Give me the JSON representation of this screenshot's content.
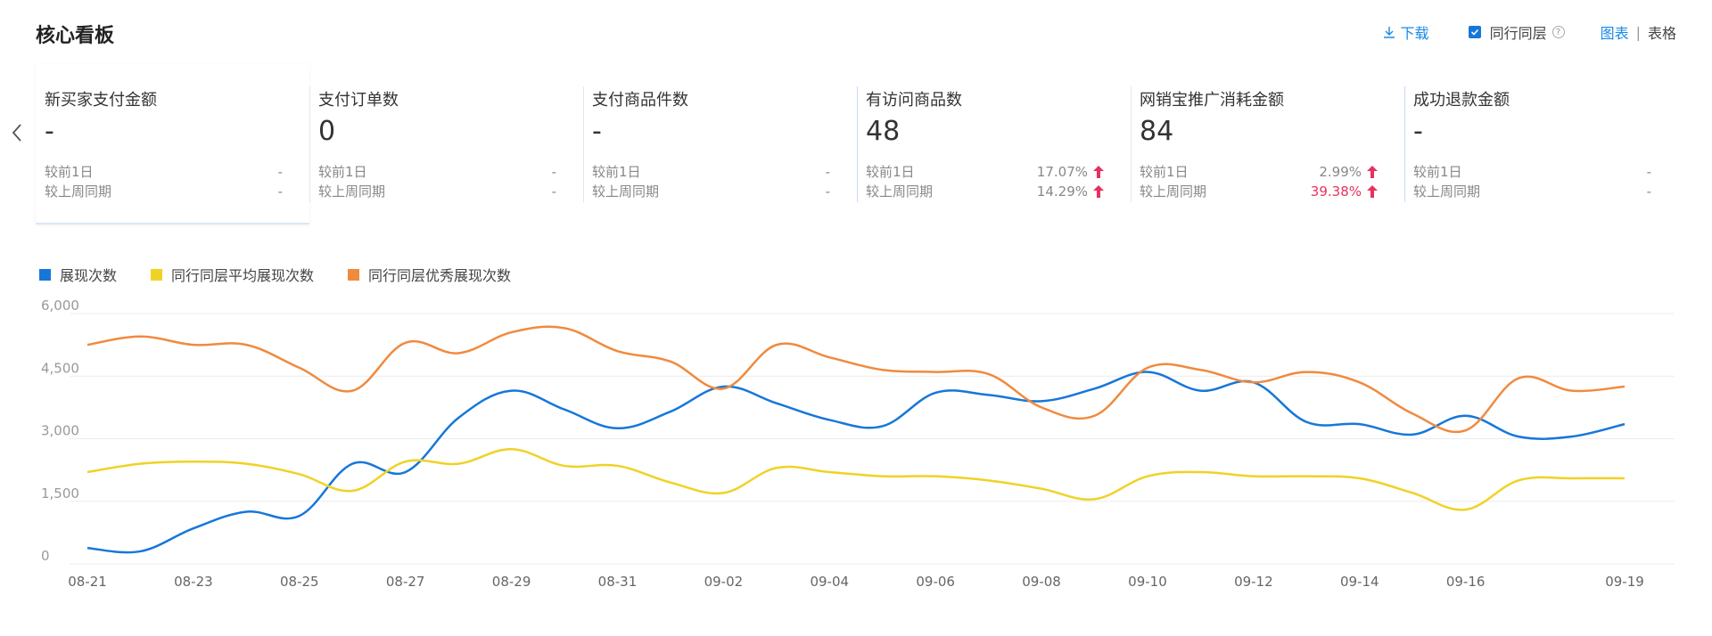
{
  "header": {
    "title": "核心看板",
    "download_label": "下载",
    "peer_label": "同行同层",
    "peer_checked": true,
    "view_chart_label": "图表",
    "view_table_label": "表格"
  },
  "colors": {
    "accent": "#1a8ae6",
    "up_red": "#e8305f"
  },
  "metrics": [
    {
      "title": "新买家支付金额",
      "value": "-",
      "cmp1_label": "较前1日",
      "cmp1_value": "-",
      "cmp2_label": "较上周同期",
      "cmp2_value": "-"
    },
    {
      "title": "支付订单数",
      "value": "0",
      "cmp1_label": "较前1日",
      "cmp1_value": "-",
      "cmp2_label": "较上周同期",
      "cmp2_value": "-"
    },
    {
      "title": "支付商品件数",
      "value": "-",
      "cmp1_label": "较前1日",
      "cmp1_value": "-",
      "cmp2_label": "较上周同期",
      "cmp2_value": "-"
    },
    {
      "title": "有访问商品数",
      "value": "48",
      "cmp1_label": "较前1日",
      "cmp1_value": "17.07%",
      "cmp2_label": "较上周同期",
      "cmp2_value": "14.29%"
    },
    {
      "title": "网销宝推广消耗金额",
      "value": "84",
      "cmp1_label": "较前1日",
      "cmp1_value": "2.99%",
      "cmp2_label": "较上周同期",
      "cmp2_value": "39.38%"
    },
    {
      "title": "成功退款金额",
      "value": "-",
      "cmp1_label": "较前1日",
      "cmp1_value": "-",
      "cmp2_label": "较上周同期",
      "cmp2_value": "-"
    }
  ],
  "chart_data": {
    "type": "line",
    "title": "",
    "xlabel": "",
    "ylabel": "",
    "ylim": [
      0,
      6000
    ],
    "yticks": [
      "0",
      "1,500",
      "3,000",
      "4,500",
      "6,000"
    ],
    "ytick_values": [
      0,
      1500,
      3000,
      4500,
      6000
    ],
    "x": [
      "08-21",
      "08-22",
      "08-23",
      "08-24",
      "08-25",
      "08-26",
      "08-27",
      "08-28",
      "08-29",
      "08-30",
      "08-31",
      "09-01",
      "09-02",
      "09-03",
      "09-04",
      "09-05",
      "09-06",
      "09-07",
      "09-08",
      "09-09",
      "09-10",
      "09-11",
      "09-12",
      "09-13",
      "09-14",
      "09-15",
      "09-16",
      "09-17",
      "09-18",
      "09-19"
    ],
    "xticks": [
      "08-21",
      "08-23",
      "08-25",
      "08-27",
      "08-29",
      "08-31",
      "09-02",
      "09-04",
      "09-06",
      "09-08",
      "09-10",
      "09-12",
      "09-14",
      "09-16",
      "09-19"
    ],
    "grid": true,
    "legend_position": "top-left",
    "series": [
      {
        "name": "展现次数",
        "color": "#1677d9",
        "values": [
          380,
          300,
          850,
          1250,
          1150,
          2400,
          2200,
          3500,
          4150,
          3700,
          3250,
          3650,
          4250,
          3850,
          3450,
          3300,
          4100,
          4050,
          3900,
          4200,
          4600,
          4150,
          4350,
          3400,
          3350,
          3100,
          3550,
          3050,
          3050,
          3350
        ]
      },
      {
        "name": "同行同层平均展现次数",
        "color": "#f0d226",
        "values": [
          2200,
          2400,
          2450,
          2400,
          2150,
          1750,
          2450,
          2400,
          2750,
          2350,
          2350,
          1950,
          1700,
          2300,
          2200,
          2100,
          2100,
          2000,
          1800,
          1550,
          2100,
          2200,
          2100,
          2100,
          2050,
          1700,
          1300,
          2000,
          2050,
          2050
        ]
      },
      {
        "name": "同行同层优秀展现次数",
        "color": "#f08a3e",
        "values": [
          5250,
          5450,
          5250,
          5250,
          4700,
          4150,
          5300,
          5050,
          5550,
          5650,
          5100,
          4850,
          4200,
          5250,
          4950,
          4650,
          4600,
          4550,
          3750,
          3550,
          4700,
          4650,
          4350,
          4600,
          4350,
          3600,
          3200,
          4450,
          4150,
          4250
        ]
      }
    ]
  }
}
